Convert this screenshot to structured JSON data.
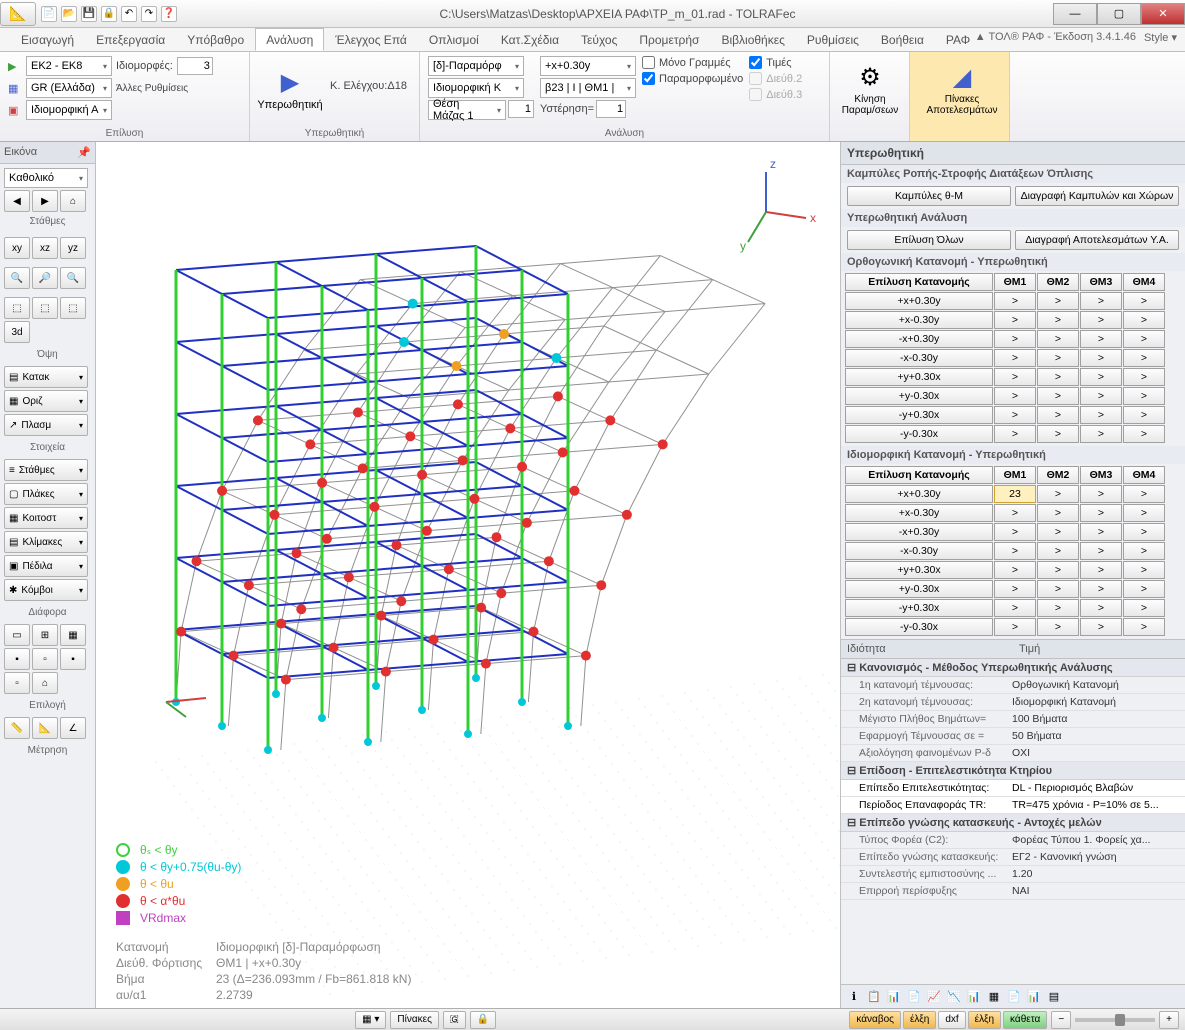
{
  "window": {
    "title": "C:\\Users\\Matzas\\Desktop\\ΑΡΧΕΙΑ ΡΑΦ\\TP_m_01.rad - TOLRAFec"
  },
  "quick_access": [
    "📄",
    "📂",
    "💾",
    "🔒",
    "↶",
    "↷",
    "❓"
  ],
  "ribbon": {
    "tabs": [
      "Εισαγωγή",
      "Επεξεργασία",
      "Υπόβαθρο",
      "Ανάλυση",
      "Έλεγχος Επά",
      "Οπλισμοί",
      "Κατ.Σχέδια",
      "Τεύχος",
      "Προμετρήσ",
      "Βιβλιοθήκες",
      "Ρυθμίσεις",
      "Βοήθεια",
      "ΡΑΦ"
    ],
    "active": "Ανάλυση",
    "version": "▲ ΤΟΛ® ΡΑΦ - Έκδοση 3.4.1.46",
    "style": "Style ▾"
  },
  "ribbon_groups": {
    "epilysi": {
      "label": "Επίλυση",
      "code": "EK2 - EK8",
      "region": "GR (Ελλάδα)",
      "mode": "Ιδιομορφική Α",
      "idio_label": "Ιδιομορφές:",
      "idio_count": "3",
      "settings": "Άλλες Ρυθμίσεις"
    },
    "yper": {
      "label": "Υπερωθητική",
      "main": "Υπερωθητική",
      "check": "Κ. Ελέγχου:Δ18"
    },
    "analysis": {
      "label": "Ανάλυση",
      "def": "[δ]-Παραμόρφ",
      "idio": "Ιδιομορφική Κ",
      "mass": "Θέση Μάζας 1",
      "mass_val": "1",
      "load": "+x+0.30y",
      "beta": "β23 | Ι | ΘΜ1 |",
      "delay": "Υστέρηση=",
      "delay_val": "1",
      "lines": "Μόνο Γραμμές",
      "deformed": "Παραμορφωμένο",
      "prices": "Τιμές",
      "d2": "Διεύθ.2",
      "d3": "Διεύθ.3"
    },
    "motion": {
      "label": "Κίνηση Παραμ/σεων"
    },
    "results": {
      "label": "Πίνακες Αποτελεσμάτων"
    }
  },
  "left": {
    "title": "Εικόνα",
    "dropdown": "Καθολικό",
    "levels": "Στάθμες",
    "view_btns": [
      "xy",
      "xz",
      "yz"
    ],
    "zoom_btns": [
      "🔍",
      "🔎",
      "🔍"
    ],
    "mode_btns": [
      "⬚",
      "⬚",
      "⬚",
      "3d"
    ],
    "view_label": "Όψη",
    "sec1": [
      {
        "ico": "▤",
        "t": "Κατακ"
      },
      {
        "ico": "▦",
        "t": "Οριζ"
      },
      {
        "ico": "↗",
        "t": "Πλασμ"
      }
    ],
    "sec1_label": "Στοιχεία",
    "sec2": [
      {
        "ico": "≡",
        "t": "Στάθμες"
      },
      {
        "ico": "▢",
        "t": "Πλάκες"
      },
      {
        "ico": "▦",
        "t": "Κοιτοστ"
      },
      {
        "ico": "▤",
        "t": "Κλίμακες"
      },
      {
        "ico": "▣",
        "t": "Πέδιλα"
      },
      {
        "ico": "✱",
        "t": "Κόμβοι"
      }
    ],
    "sec2_label": "Διάφορα",
    "sel_label": "Επιλογή",
    "meas_label": "Μέτρηση"
  },
  "canvas": {
    "axes": {
      "x": "x",
      "y": "y",
      "z": "z",
      "x_color": "#d04040",
      "y_color": "#40a040",
      "z_color": "#4060d0"
    },
    "grid_color": "#c8c8c8",
    "frame_color": "#2030c0",
    "column_color": "#30d030",
    "deformed_color": "#909090",
    "dots": {
      "cyan": "#00c8d8",
      "orange": "#f0a020",
      "red": "#e03030"
    }
  },
  "legend": {
    "items": [
      {
        "color": "#ffffff",
        "stroke": "#40d040",
        "label": "θₛ < θy"
      },
      {
        "color": "#00c8d8",
        "label": "θ < θy+0.75(θu-θy)"
      },
      {
        "color": "#f0a020",
        "label": "θ < θu"
      },
      {
        "color": "#e03030",
        "label": "θ < α*θu"
      },
      {
        "color": "#c040c0",
        "shape": "sq",
        "label": "VRdmax"
      }
    ]
  },
  "info": {
    "rows": [
      {
        "k": "Κατανομή",
        "v": "Ιδιομορφική [δ]-Παραμόρφωση"
      },
      {
        "k": "Διεύθ. Φόρτισης",
        "v": "ΘΜ1 | +x+0.30y"
      },
      {
        "k": "Βήμα",
        "v": "23 (Δ=236.093mm / Fb=861.818 kN)"
      },
      {
        "k": "αυ/α1",
        "v": "2.2739"
      }
    ]
  },
  "right": {
    "title": "Υπερωθητική",
    "sec1": {
      "title": "Καμπύλες Ροπής-Στροφής Διατάξεων Όπλισης",
      "btns": [
        "Καμπύλες θ-Μ",
        "Διαγραφή Καμπυλών και Χώρων"
      ]
    },
    "sec2": {
      "title": "Υπερωθητική Ανάλυση",
      "btns": [
        "Επίλυση Όλων",
        "Διαγραφή Αποτελεσμάτων Υ.Α."
      ]
    },
    "ortho": {
      "title": "Ορθογωνική Κατανομή - Υπερωθητική",
      "head": [
        "Επίλυση Κατανομής",
        "ΘΜ1",
        "ΘΜ2",
        "ΘΜ3",
        "ΘΜ4"
      ],
      "rows": [
        "+x+0.30y",
        "+x-0.30y",
        "-x+0.30y",
        "-x-0.30y",
        "+y+0.30x",
        "+y-0.30x",
        "-y+0.30x",
        "-y-0.30x"
      ]
    },
    "idio": {
      "title": "Ιδιομορφική Κατανομή - Υπερωθητική",
      "head": [
        "Επίλυση Κατανομής",
        "ΘΜ1",
        "ΘΜ2",
        "ΘΜ3",
        "ΘΜ4"
      ],
      "rows": [
        "+x+0.30y",
        "+x-0.30y",
        "-x+0.30y",
        "-x-0.30y",
        "+y+0.30x",
        "+y-0.30x",
        "-y+0.30x",
        "-y-0.30x"
      ],
      "active_row": 0,
      "active_val": "23"
    },
    "props": {
      "head": [
        "Ιδιότητα",
        "Τιμή"
      ],
      "groups": [
        {
          "name": "Κανονισμός - Μέθοδος Υπερωθητικής Ανάλυσης",
          "rows": [
            {
              "k": "1η κατανομή τέμνουσας:",
              "v": "Ορθογωνική Κατανομή"
            },
            {
              "k": "2η κατανομή τέμνουσας:",
              "v": "Ιδιομορφική Κατανομή"
            },
            {
              "k": "Μέγιστο Πλήθος Βημάτων=",
              "v": "100 Βήματα"
            },
            {
              "k": "Εφαρμογή Τέμνουσας σε =",
              "v": "50 Βήματα"
            },
            {
              "k": "Αξιολόγηση φαινομένων P-δ",
              "v": "ΟΧΙ"
            }
          ]
        },
        {
          "name": "Επίδοση - Επιτελεστικότητα Κτηρίου",
          "rows": [
            {
              "k": "Επίπεδο Επιτελεστικότητας:",
              "v": "DL - Περιορισμός Βλαβών",
              "edit": true
            },
            {
              "k": "Περίοδος Επαναφοράς TR:",
              "v": "TR=475 χρόνια - P=10% σε 5...",
              "edit": true
            }
          ]
        },
        {
          "name": "Επίπεδο γνώσης κατασκευής - Αντοχές μελών",
          "rows": [
            {
              "k": "Τύπος Φορέα (C2):",
              "v": "Φορέας Τύπου 1. Φορείς χα..."
            },
            {
              "k": "Επίπεδο γνώσης κατασκευής:",
              "v": "ΕΓ2 - Κανονική γνώση"
            },
            {
              "k": "Συντελεστής εμπιστοσύνης ...",
              "v": "1.20"
            },
            {
              "k": "Επιρροή περίσφυξης",
              "v": "ΝΑΙ"
            }
          ]
        }
      ]
    },
    "toolbar": [
      "ℹ",
      "📋",
      "📊",
      "📄",
      "📈",
      "📉",
      "📊",
      "▦",
      "📄",
      "📊",
      "▤"
    ]
  },
  "status": {
    "center": [
      "▦ ▾",
      "Πίνακες",
      "🇬",
      "🔒"
    ],
    "right": [
      {
        "t": "κάναβος",
        "c": "o"
      },
      {
        "t": "έλξη",
        "c": "o"
      },
      {
        "t": "dxf",
        "c": ""
      },
      {
        "t": "έλξη",
        "c": "o"
      },
      {
        "t": "κάθετα",
        "c": "g"
      }
    ]
  }
}
